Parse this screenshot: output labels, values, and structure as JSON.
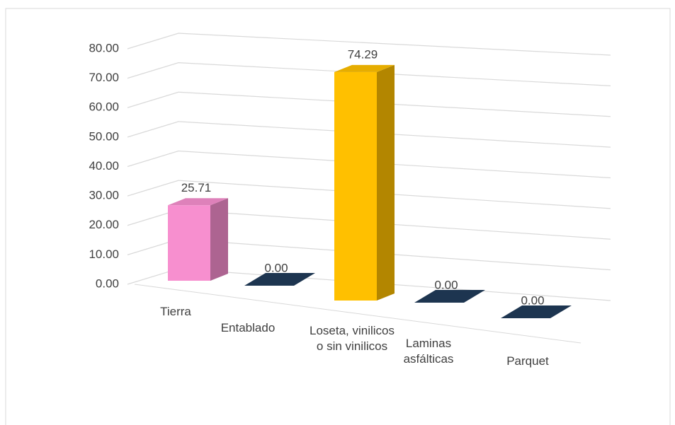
{
  "chart_data": {
    "type": "bar3d",
    "categories": [
      "Tierra",
      "Entablado",
      "Loseta, vinilicos o sin vinilicos",
      "Laminas asfálticas",
      "Parquet"
    ],
    "values": [
      25.71,
      0,
      74.29,
      0,
      0
    ],
    "value_labels": [
      "25.71",
      "0.00",
      "74.29",
      "0.00",
      "0.00"
    ],
    "colors": [
      "#f78fcf",
      "#1d3550",
      "#ffc000",
      "#1d3550",
      "#1d3550"
    ],
    "ylim": [
      0,
      80
    ],
    "yticks": [
      {
        "value": 0,
        "label": "0.00"
      },
      {
        "value": 10,
        "label": "10.00"
      },
      {
        "value": 20,
        "label": "20.00"
      },
      {
        "value": 30,
        "label": "30.00"
      },
      {
        "value": 40,
        "label": "40.00"
      },
      {
        "value": 50,
        "label": "50.00"
      },
      {
        "value": 60,
        "label": "60.00"
      },
      {
        "value": 70,
        "label": "70.00"
      },
      {
        "value": 80,
        "label": "80.00"
      }
    ],
    "grid": true
  }
}
